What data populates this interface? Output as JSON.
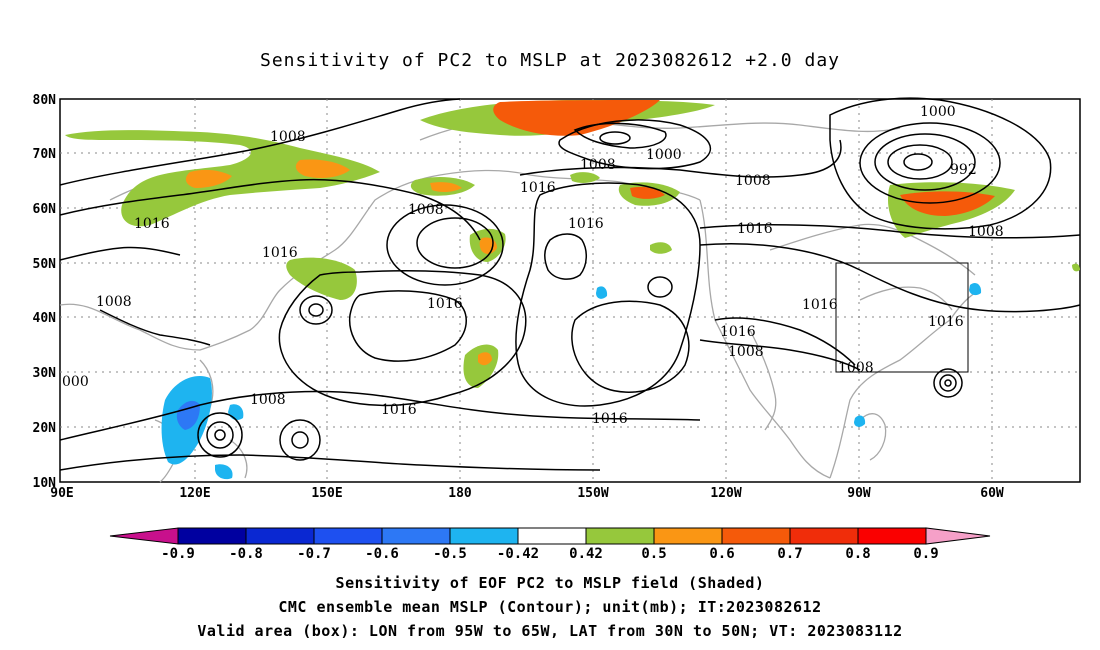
{
  "title": "Sensitivity of PC2 to MSLP at 2023082612 +2.0 day",
  "lat_labels": [
    "80N",
    "70N",
    "60N",
    "50N",
    "40N",
    "30N",
    "20N",
    "10N"
  ],
  "lon_labels": [
    "90E",
    "120E",
    "150E",
    "180",
    "150W",
    "120W",
    "90W",
    "60W"
  ],
  "contour_labels": [
    "1008",
    "1000",
    "1008",
    "1000",
    "992",
    "1016",
    "1008",
    "1008",
    "1016",
    "1016",
    "1016",
    "1008",
    "1016",
    "1016",
    "1016",
    "1008",
    "1016",
    "1016",
    "1008",
    "1008",
    "1016",
    "1016",
    "000",
    "1008"
  ],
  "colorbar": {
    "labels": [
      "-0.9",
      "-0.8",
      "-0.7",
      "-0.6",
      "-0.5",
      "-0.42",
      "0.42",
      "0.5",
      "0.6",
      "0.7",
      "0.8",
      "0.9"
    ],
    "colors": [
      "#c8108c",
      "#0000a0",
      "#0a28d2",
      "#1e50f0",
      "#2d78f5",
      "#1eb4f0",
      "#ffffff",
      "#96c83c",
      "#fa9614",
      "#f55a0a",
      "#f02d0a",
      "#fa0000",
      "#f5a0c8"
    ]
  },
  "box": {
    "label": "Valid area (box)",
    "lon": [
      "95W",
      "65W"
    ],
    "lat": [
      "30N",
      "50N"
    ]
  },
  "footer": {
    "line1": "Sensitivity of EOF PC2 to MSLP field (Shaded)",
    "line2": "CMC ensemble mean MSLP (Contour); unit(mb); IT:2023082612",
    "line3": "Valid area (box): LON from 95W to 65W, LAT from 30N to 50N; VT: 2023083112"
  }
}
